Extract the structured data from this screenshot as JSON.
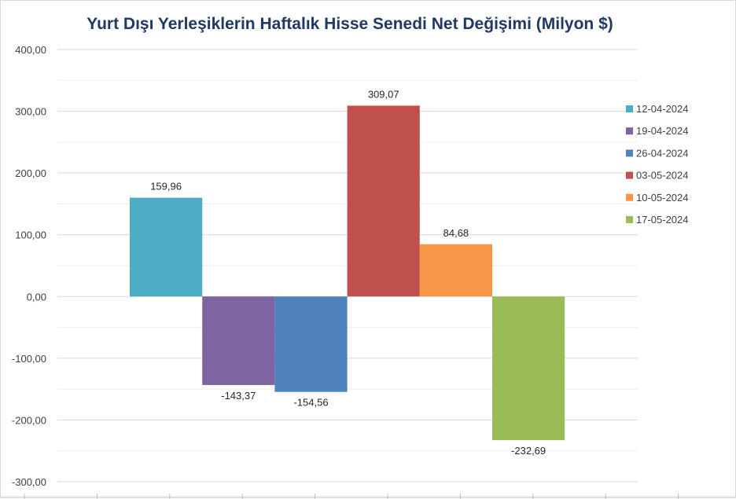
{
  "chart_data": {
    "type": "bar",
    "title": "Yurt Dışı Yerleşiklerin Haftalık Hisse Senedi Net Değişimi (Milyon $)",
    "categories": [
      "12-04-2024",
      "19-04-2024",
      "26-04-2024",
      "03-05-2024",
      "10-05-2024",
      "17-05-2024"
    ],
    "values": [
      159.96,
      -143.37,
      -154.56,
      309.07,
      84.68,
      -232.69
    ],
    "data_labels": [
      "159,96",
      "-143,37",
      "-154,56",
      "309,07",
      "84,68",
      "-232,69"
    ],
    "colors": [
      "#4bacc6",
      "#8064a2",
      "#4f81bd",
      "#c0504d",
      "#f79646",
      "#9bbb59"
    ],
    "ylim": [
      -300,
      400
    ],
    "y_ticks": [
      400,
      300,
      200,
      100,
      0,
      -100,
      -200,
      -300
    ],
    "y_tick_labels": [
      "400,00",
      "300,00",
      "200,00",
      "100,00",
      "0,00",
      "-100,00",
      "-200,00",
      "-300,00"
    ],
    "xlabel": "",
    "ylabel": "",
    "grid": true,
    "legend_position": "right"
  }
}
